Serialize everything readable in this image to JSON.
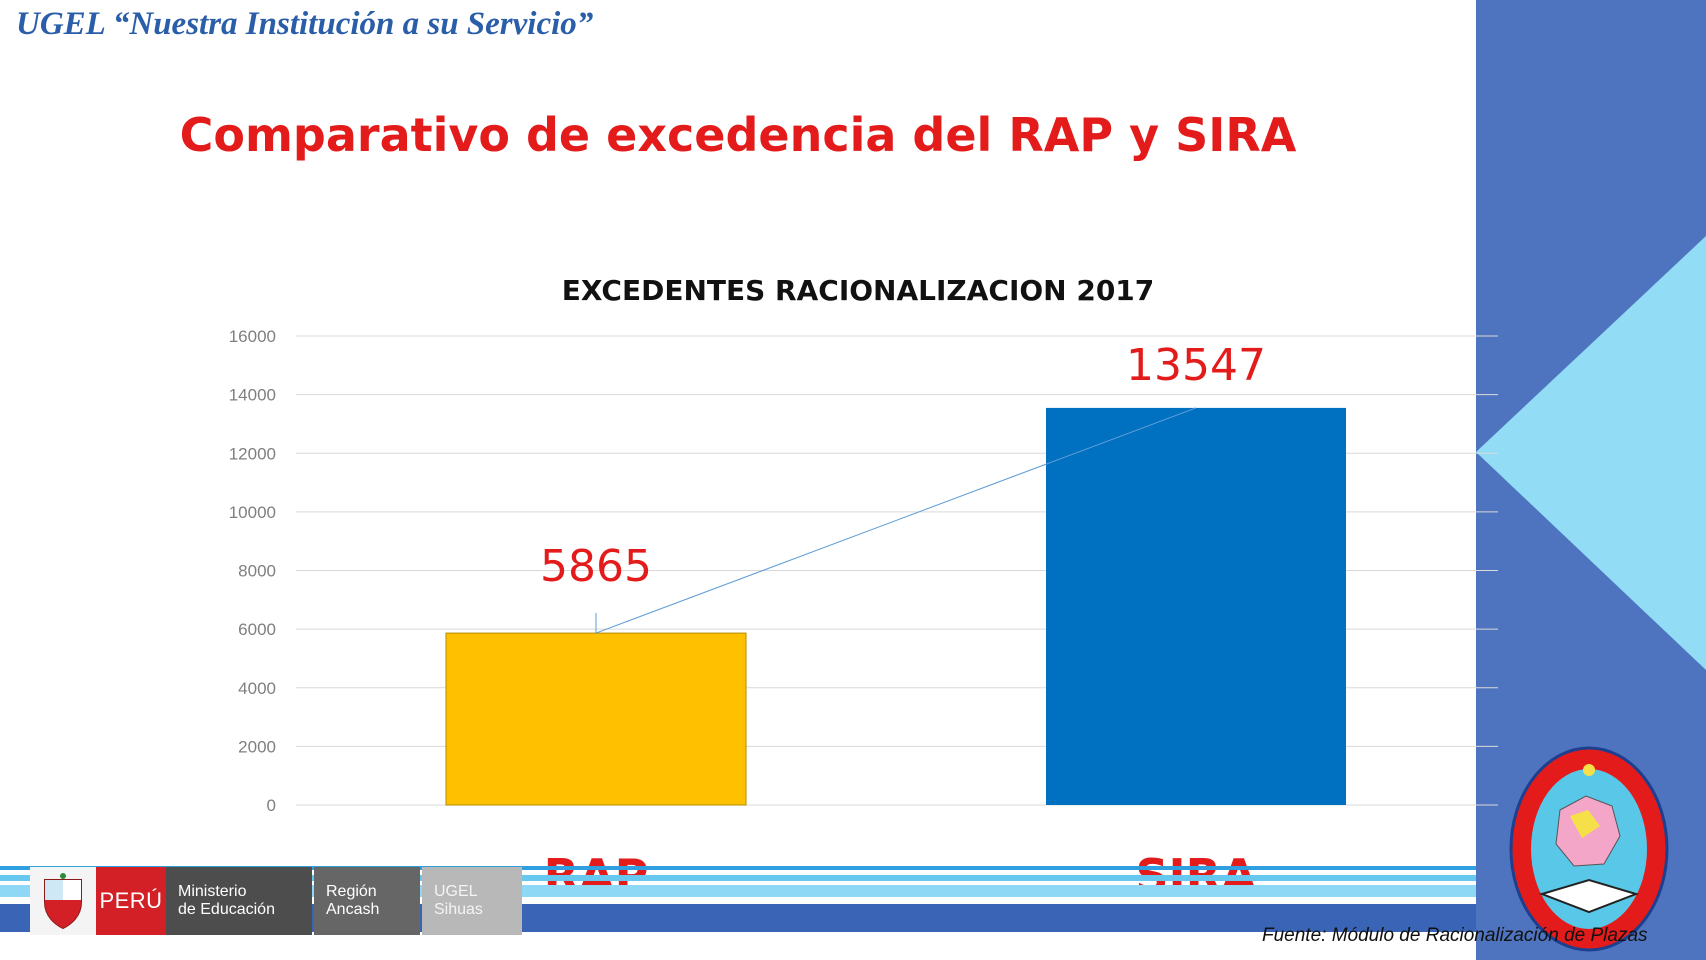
{
  "header": {
    "institution_motto": "UGEL “Nuestra Institución a su Servicio”"
  },
  "slide": {
    "title": "Comparativo de excedencia del RAP y SIRA"
  },
  "chart_data": {
    "type": "bar",
    "title": "EXCEDENTES RACIONALIZACION 2017",
    "categories": [
      "RAP",
      "SIRA"
    ],
    "values": [
      5865,
      13547
    ],
    "data_labels": [
      "5865",
      "13547"
    ],
    "bar_colors": [
      "#ffc000",
      "#0070c0"
    ],
    "yticks": [
      "0",
      "2000",
      "4000",
      "6000",
      "8000",
      "10000",
      "12000",
      "14000",
      "16000"
    ],
    "ylim": [
      0,
      16000
    ],
    "grid": true,
    "label_color": "#e31b1b"
  },
  "footer": {
    "logos": {
      "peru": "PERÚ",
      "ministry_line1": "Ministerio",
      "ministry_line2": "de Educación",
      "region_line1": "Región",
      "region_line2": "Ancash",
      "ugel_line1": "UGEL",
      "ugel_line2": "Sihuas"
    },
    "source": "Fuente: Módulo de Racionalización de Plazas"
  },
  "colors": {
    "panel_blue": "#4f74bf",
    "panel_light": "#92dcf6",
    "title_red": "#e31b1b",
    "motto_blue": "#2a5ea8"
  },
  "icons": {
    "shield": "peru-shield-icon",
    "emblem": "ugel-sihuas-emblem-icon"
  }
}
